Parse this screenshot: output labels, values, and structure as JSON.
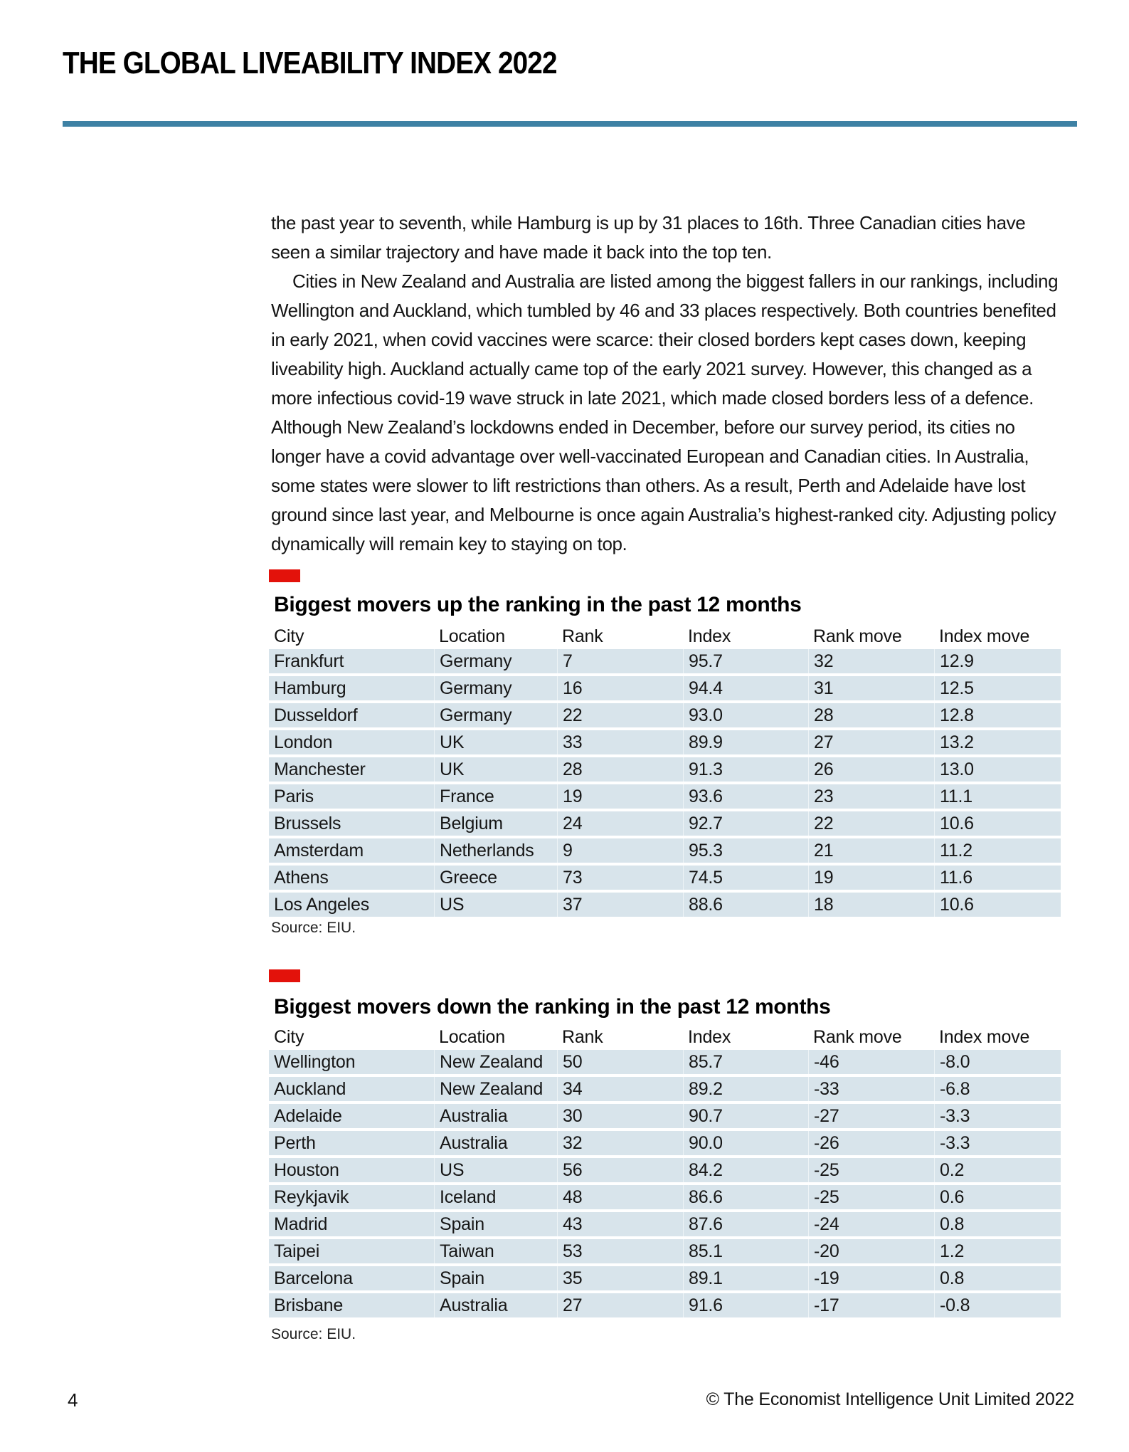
{
  "colors": {
    "accent_red": "#e3120b",
    "accent_blue": "#3e81a4",
    "row_blue": "#d8e4eb"
  },
  "header": {
    "title": "THE GLOBAL LIVEABILITY INDEX 2022"
  },
  "body": {
    "paragraph1": "the past year to seventh, while Hamburg is up by 31 places to 16th. Three Canadian cities have seen a similar trajectory and have made it back into the top ten.",
    "paragraph2": "Cities in New Zealand and Australia are listed among the biggest fallers in our rankings, including Wellington and Auckland, which tumbled by 46 and 33 places respectively. Both countries benefited in early 2021, when covid vaccines were scarce: their closed borders kept cases down, keeping liveability high. Auckland actually came top of the early 2021 survey. However, this changed as a more infectious covid-19 wave struck in late 2021, which made closed borders less of a defence. Although New Zealand’s lockdowns ended in December, before our survey period, its cities no longer have a covid advantage over well-vaccinated European and Canadian cities. In Australia, some states were slower to lift restrictions than others. As a result, Perth and Adelaide have lost ground since last year, and Melbourne is once again Australia’s highest-ranked city. Adjusting policy dynamically will remain key to staying on top."
  },
  "tables": [
    {
      "title": "Biggest movers up the ranking in the past 12 months",
      "columns": [
        "City",
        "Location",
        "Rank",
        "Index",
        "Rank move",
        "Index move"
      ],
      "rows": [
        [
          "Frankfurt",
          "Germany",
          "7",
          "95.7",
          "32",
          "12.9"
        ],
        [
          "Hamburg",
          "Germany",
          "16",
          "94.4",
          "31",
          "12.5"
        ],
        [
          "Dusseldorf",
          "Germany",
          "22",
          "93.0",
          "28",
          "12.8"
        ],
        [
          "London",
          "UK",
          "33",
          "89.9",
          "27",
          "13.2"
        ],
        [
          "Manchester",
          "UK",
          "28",
          "91.3",
          "26",
          "13.0"
        ],
        [
          "Paris",
          "France",
          "19",
          "93.6",
          "23",
          "11.1"
        ],
        [
          "Brussels",
          "Belgium",
          "24",
          "92.7",
          "22",
          "10.6"
        ],
        [
          "Amsterdam",
          "Netherlands",
          "9",
          "95.3",
          "21",
          "11.2"
        ],
        [
          "Athens",
          "Greece",
          "73",
          "74.5",
          "19",
          "11.6"
        ],
        [
          "Los Angeles",
          "US",
          "37",
          "88.6",
          "18",
          "10.6"
        ]
      ],
      "source": "Source: EIU."
    },
    {
      "title": "Biggest movers down the ranking in the past 12 months",
      "columns": [
        "City",
        "Location",
        "Rank",
        "Index",
        "Rank move",
        "Index move"
      ],
      "rows": [
        [
          "Wellington",
          "New Zealand",
          "50",
          "85.7",
          "-46",
          "-8.0"
        ],
        [
          "Auckland",
          "New Zealand",
          "34",
          "89.2",
          "-33",
          "-6.8"
        ],
        [
          "Adelaide",
          "Australia",
          "30",
          "90.7",
          "-27",
          "-3.3"
        ],
        [
          "Perth",
          "Australia",
          "32",
          "90.0",
          "-26",
          "-3.3"
        ],
        [
          "Houston",
          "US",
          "56",
          "84.2",
          "-25",
          "0.2"
        ],
        [
          "Reykjavik",
          "Iceland",
          "48",
          "86.6",
          "-25",
          "0.6"
        ],
        [
          "Madrid",
          "Spain",
          "43",
          "87.6",
          "-24",
          "0.8"
        ],
        [
          "Taipei",
          "Taiwan",
          "53",
          "85.1",
          "-20",
          "1.2"
        ],
        [
          "Barcelona",
          "Spain",
          "35",
          "89.1",
          "-19",
          "0.8"
        ],
        [
          "Brisbane",
          "Australia",
          "27",
          "91.6",
          "-17",
          "-0.8"
        ]
      ],
      "source": "Source: EIU."
    }
  ],
  "footer": {
    "page_number": "4",
    "copyright": "© The Economist Intelligence Unit Limited 2022"
  }
}
